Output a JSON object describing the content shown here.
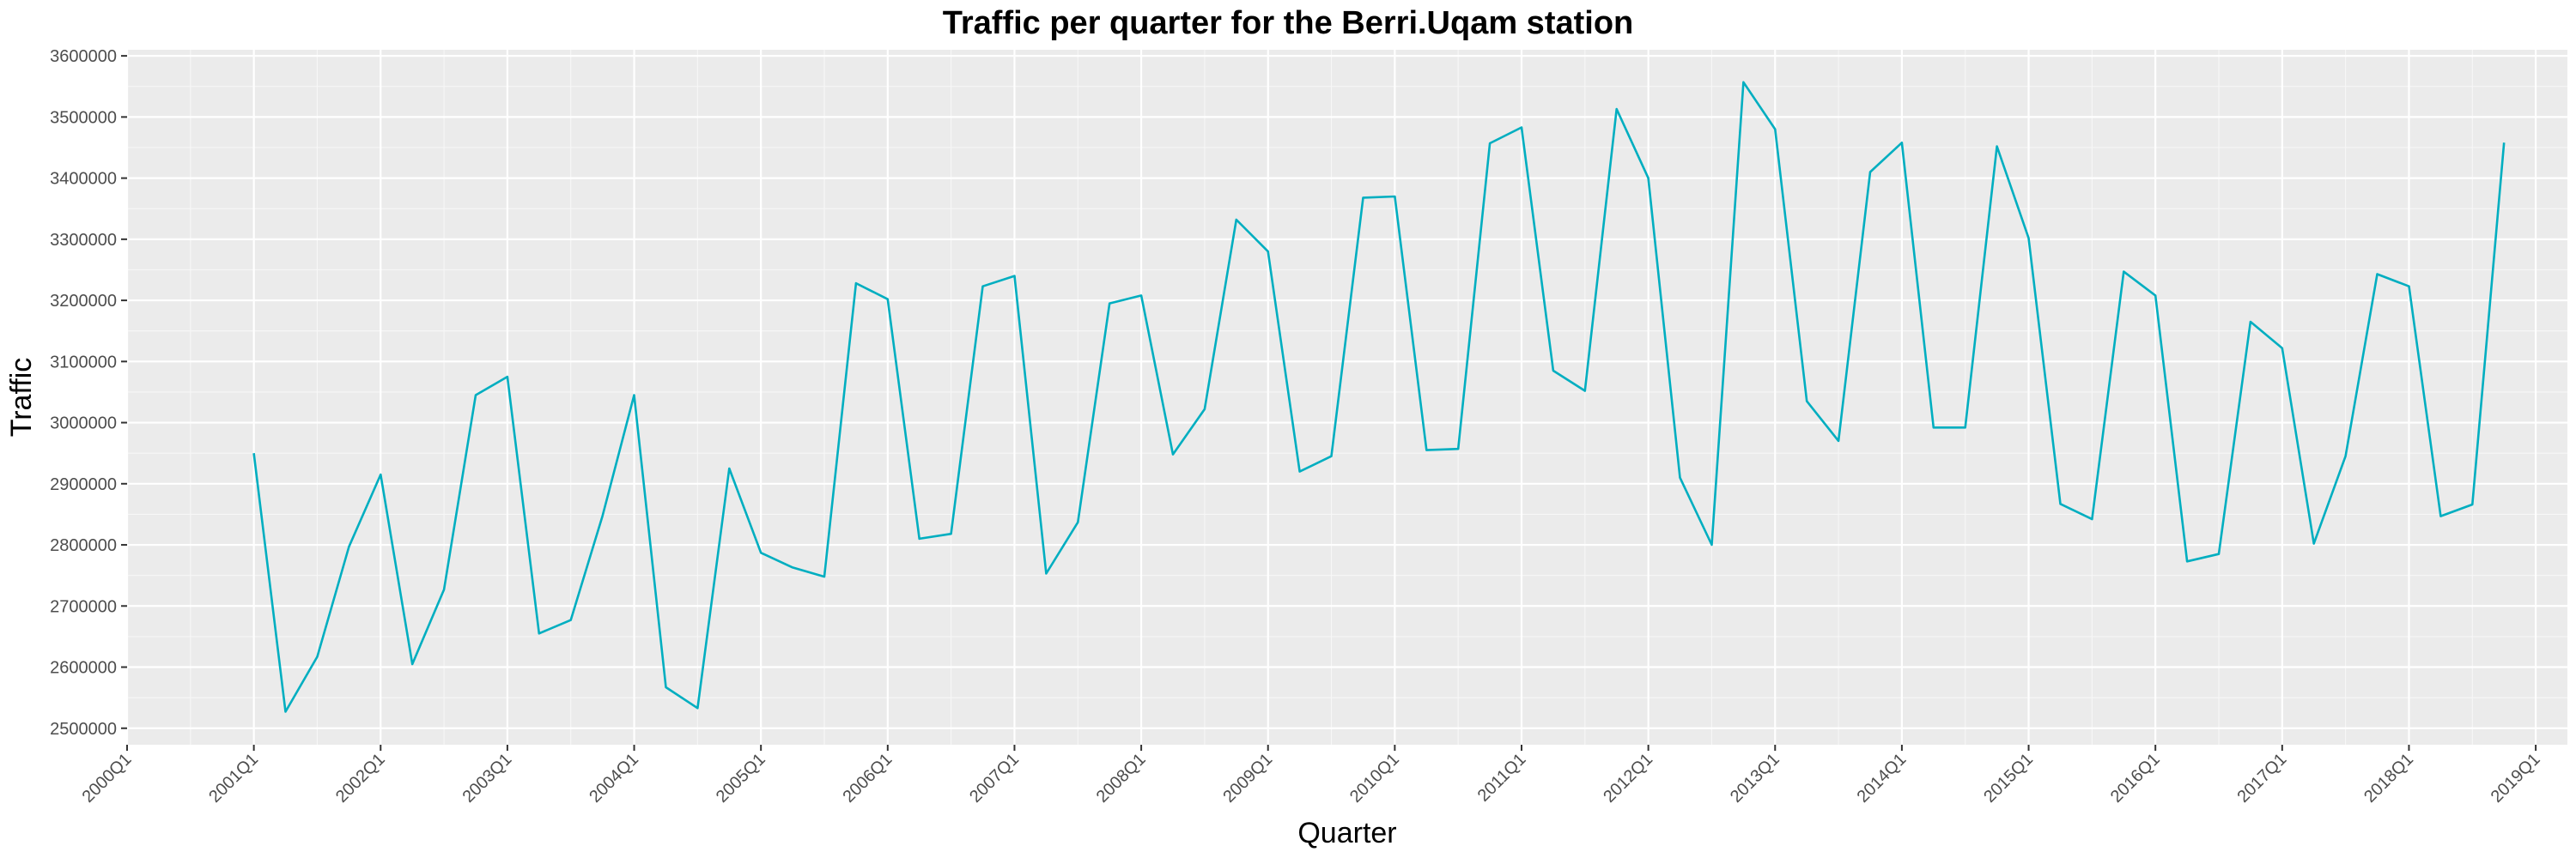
{
  "chart_data": {
    "type": "line",
    "title": "Traffic per quarter for the Berri.Uqam station",
    "xlabel": "Quarter",
    "ylabel": "Traffic",
    "x_ticks": [
      "2000Q1",
      "2001Q1",
      "2002Q1",
      "2003Q1",
      "2004Q1",
      "2005Q1",
      "2006Q1",
      "2007Q1",
      "2008Q1",
      "2009Q1",
      "2010Q1",
      "2011Q1",
      "2012Q1",
      "2013Q1",
      "2014Q1",
      "2015Q1",
      "2016Q1",
      "2017Q1",
      "2018Q1",
      "2019Q1"
    ],
    "y_ticks": [
      2500000,
      2600000,
      2700000,
      2800000,
      2900000,
      3000000,
      3100000,
      3200000,
      3300000,
      3400000,
      3500000,
      3600000
    ],
    "y_tick_labels": [
      "2500000",
      "2600000",
      "2700000",
      "2800000",
      "2900000",
      "3000000",
      "3100000",
      "3200000",
      "3300000",
      "3400000",
      "3500000",
      "3600000"
    ],
    "xlim": [
      "2000Q1",
      "2019Q2"
    ],
    "ylim": [
      2473000,
      3610000
    ],
    "grid": true,
    "series": [
      {
        "color": "#00AEC0",
        "x": [
          "2001Q1",
          "2001Q2",
          "2001Q3",
          "2001Q4",
          "2002Q1",
          "2002Q2",
          "2002Q3",
          "2002Q4",
          "2003Q1",
          "2003Q2",
          "2003Q3",
          "2003Q4",
          "2004Q1",
          "2004Q2",
          "2004Q3",
          "2004Q4",
          "2005Q1",
          "2005Q2",
          "2005Q3",
          "2005Q4",
          "2006Q1",
          "2006Q2",
          "2006Q3",
          "2006Q4",
          "2007Q1",
          "2007Q2",
          "2007Q3",
          "2007Q4",
          "2008Q1",
          "2008Q2",
          "2008Q3",
          "2008Q4",
          "2009Q1",
          "2009Q2",
          "2009Q3",
          "2009Q4",
          "2010Q1",
          "2010Q2",
          "2010Q3",
          "2010Q4",
          "2011Q1",
          "2011Q2",
          "2011Q3",
          "2011Q4",
          "2012Q1",
          "2012Q2",
          "2012Q3",
          "2012Q4",
          "2013Q1",
          "2013Q2",
          "2013Q3",
          "2013Q4",
          "2014Q1",
          "2014Q2",
          "2014Q3",
          "2014Q4",
          "2015Q1",
          "2015Q2",
          "2015Q3",
          "2015Q4",
          "2016Q1",
          "2016Q2",
          "2016Q3",
          "2016Q4",
          "2017Q1",
          "2017Q2",
          "2017Q3",
          "2017Q4",
          "2018Q1",
          "2018Q2",
          "2018Q3",
          "2018Q4"
        ],
        "values": [
          2950000,
          2527000,
          2617000,
          2797000,
          2915000,
          2605000,
          2727000,
          3045000,
          3075000,
          2655000,
          2677000,
          2847000,
          3045000,
          2567000,
          2533000,
          2925000,
          2787000,
          2763000,
          2748000,
          3228000,
          3202000,
          2810000,
          2818000,
          3223000,
          3240000,
          2753000,
          2837000,
          3195000,
          3208000,
          2948000,
          3022000,
          3332000,
          3280000,
          2920000,
          2945000,
          3368000,
          3370000,
          2955000,
          2957000,
          3457000,
          3483000,
          3085000,
          3052000,
          3513000,
          3400000,
          2910000,
          2800000,
          3557000,
          3480000,
          3035000,
          2970000,
          3410000,
          3458000,
          2992000,
          2992000,
          3452000,
          3302000,
          2867000,
          2842000,
          3247000,
          3208000,
          2773000,
          2785000,
          3165000,
          3122000,
          2802000,
          2945000,
          3243000,
          3223000,
          2847000,
          2866000,
          3458000
        ]
      }
    ]
  }
}
